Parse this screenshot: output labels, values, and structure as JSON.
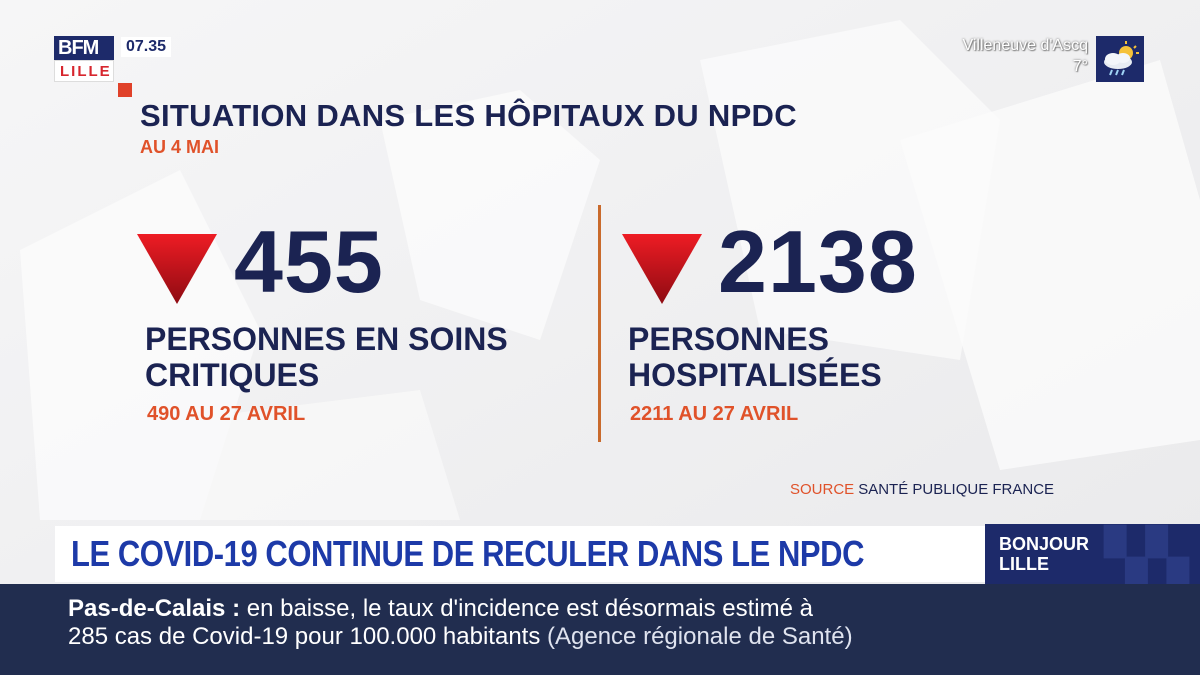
{
  "channel": {
    "logo_top": "BFM",
    "logo_bottom": "LILLE",
    "time": "07.35"
  },
  "weather": {
    "city": "Villeneuve d'Ascq",
    "temperature": "7°",
    "icon": "cloud-sun-rain-icon"
  },
  "graphic": {
    "title": "SITUATION DANS LES HÔPITAUX DU NPDC",
    "date": "AU 4 MAI",
    "stats": [
      {
        "value": "455",
        "trend": "down",
        "label_line1": "PERSONNES EN SOINS",
        "label_line2": "CRITIQUES",
        "previous": "490 AU 27 AVRIL"
      },
      {
        "value": "2138",
        "trend": "down",
        "label_line1": "PERSONNES",
        "label_line2": "HOSPITALISÉES",
        "previous": "2211 AU 27 AVRIL"
      }
    ],
    "source_label": "SOURCE",
    "source_value": "SANTÉ PUBLIQUE FRANCE"
  },
  "headline": {
    "text": "LE COVID-19 CONTINUE DE RECULER DANS LE NPDC"
  },
  "show": {
    "line1": "BONJOUR",
    "line2": "LILLE"
  },
  "ticker": {
    "region": "Pas-de-Calais :",
    "line1_text": "en baisse, le taux d'incidence est désormais estimé à",
    "line2_text": "285 cas de Covid-19 pour 100.000 habitants",
    "line2_source": "(Agence régionale de Santé)"
  },
  "colors": {
    "navy": "#1b2352",
    "orange": "#e0522a",
    "headline_blue": "#1d3aa8",
    "ticker_bg": "#212d4f",
    "arrow_red": "#d4151c"
  }
}
